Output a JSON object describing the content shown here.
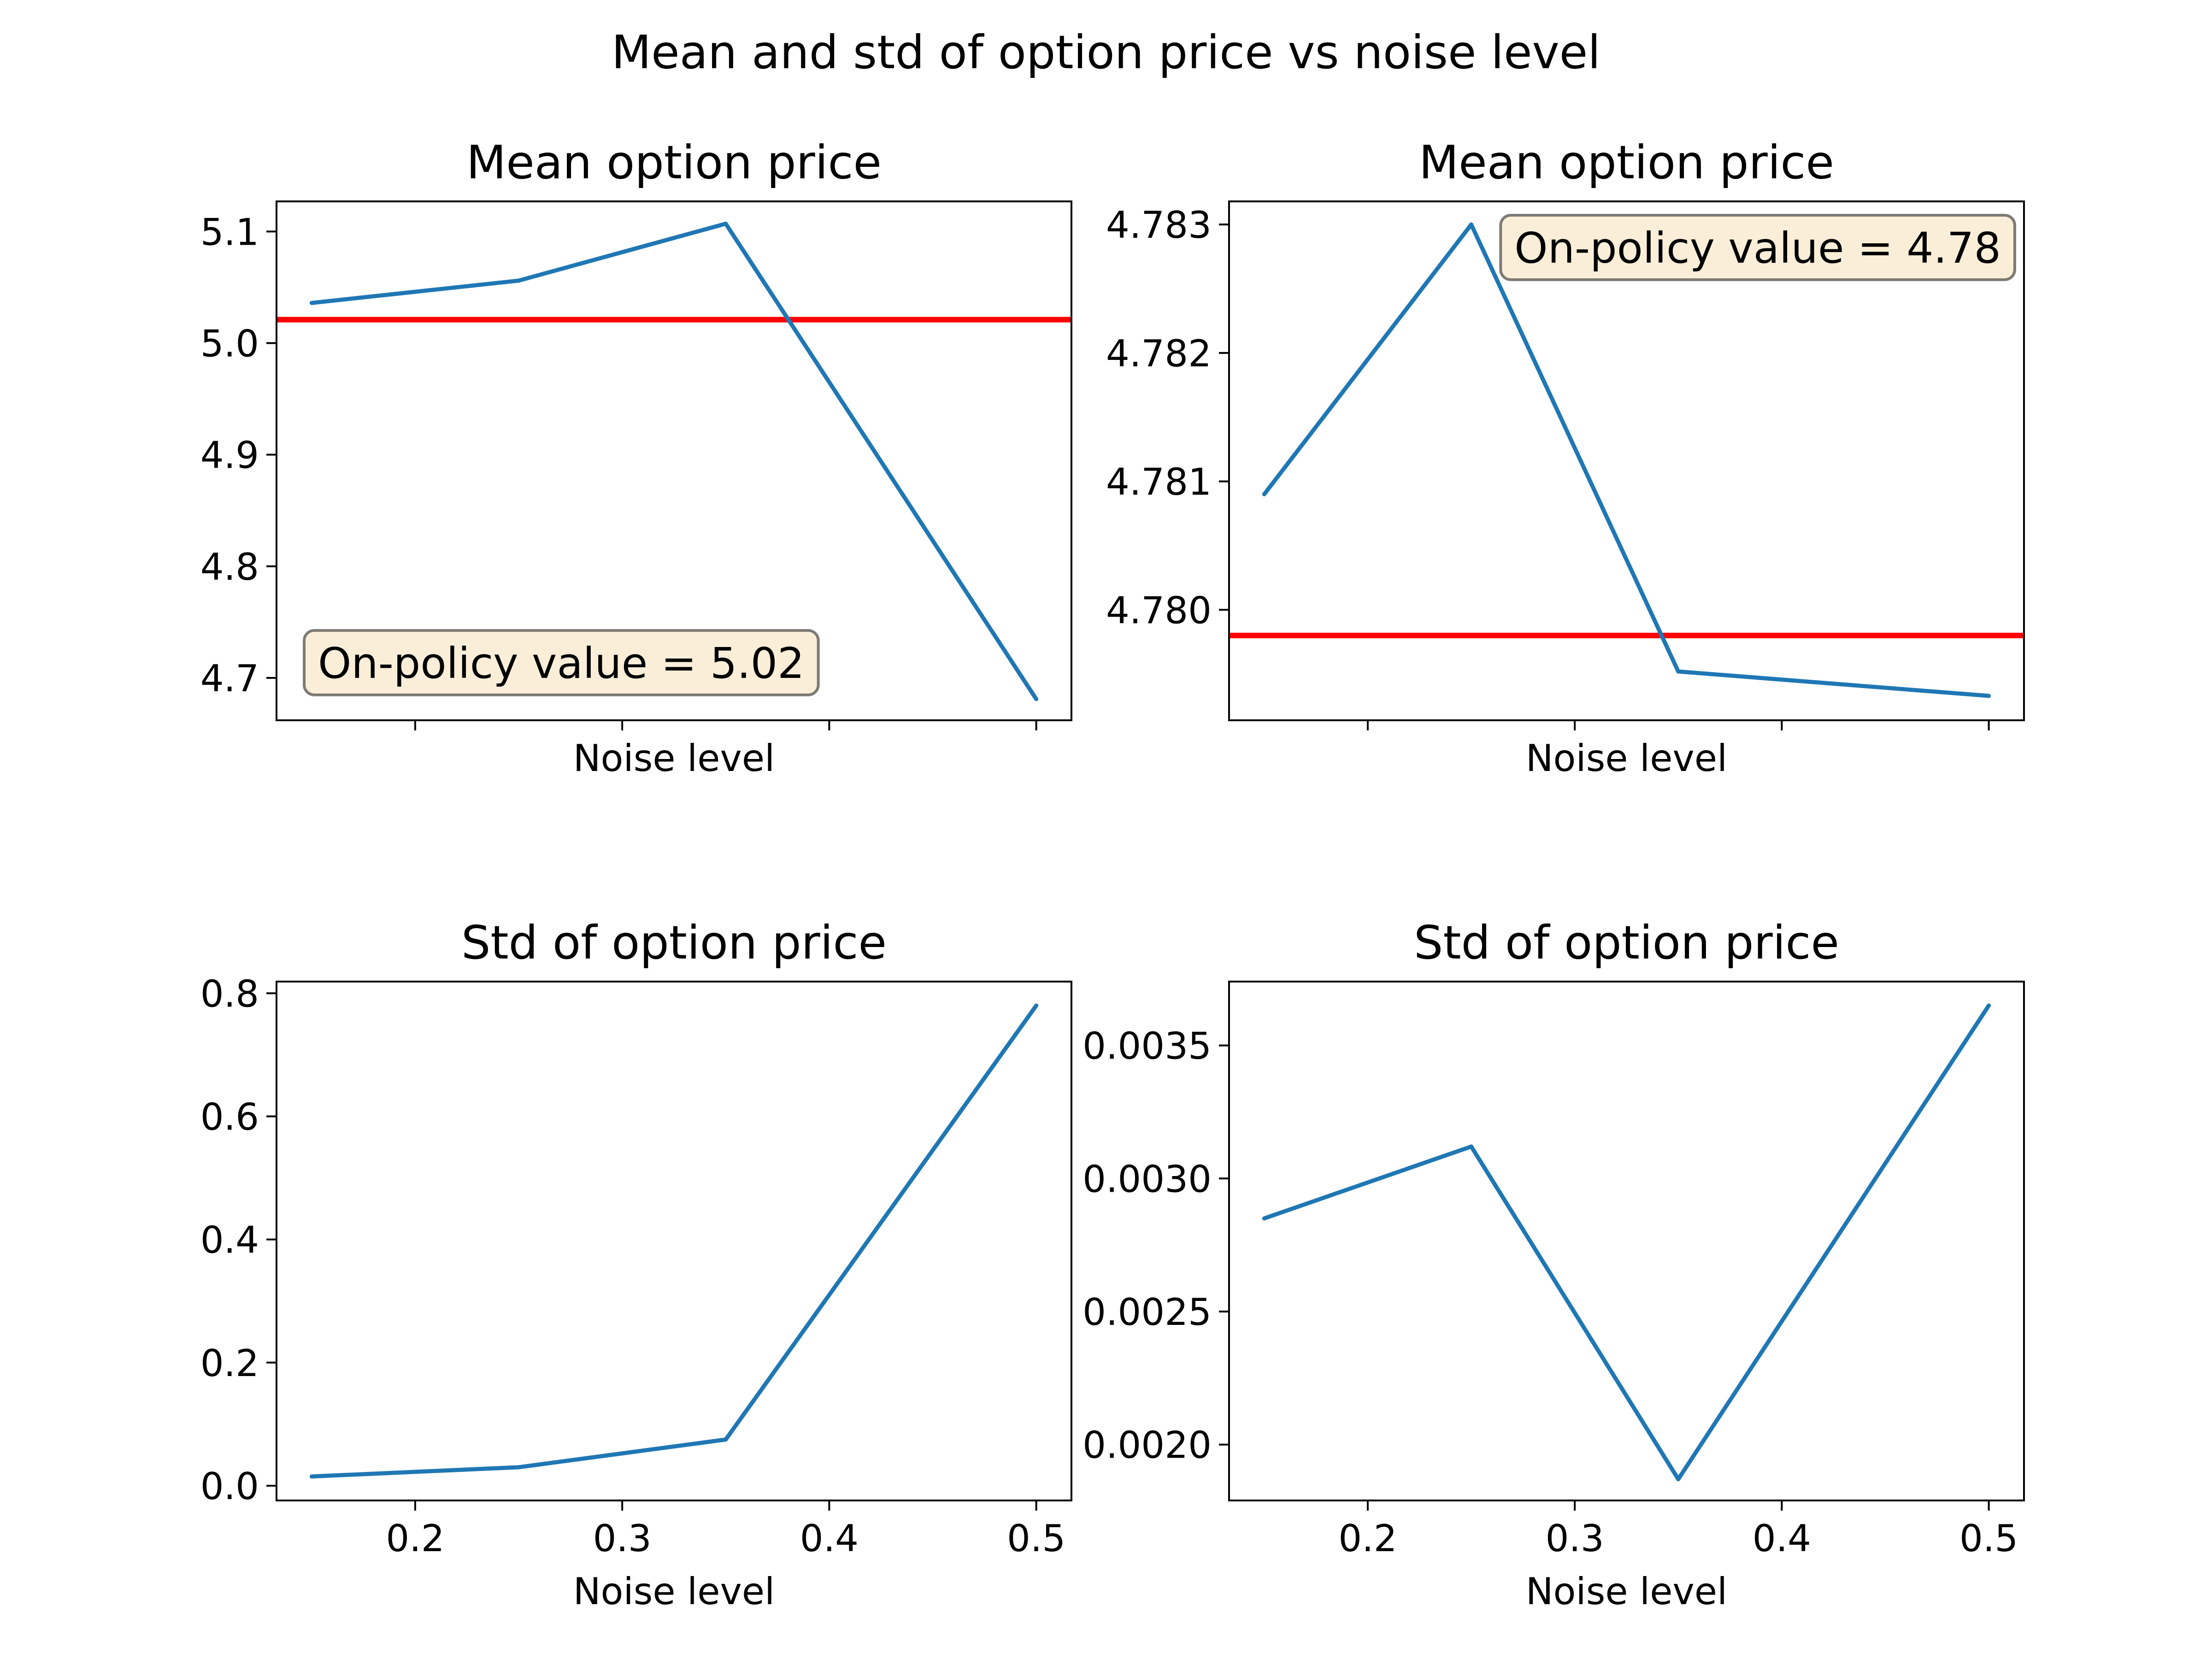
{
  "figure": {
    "suptitle": "Mean and std of option price vs noise level"
  },
  "colors": {
    "series": "#1f77b4",
    "reference": "#ff0000",
    "annotation_fill": "#f5deb3",
    "annotation_edge": "#000000"
  },
  "chart_data": [
    {
      "type": "line",
      "title": "Mean option price",
      "xlabel": "Noise level",
      "ylabel": "",
      "x": [
        0.15,
        0.25,
        0.35,
        0.5
      ],
      "values": [
        5.036,
        5.056,
        5.107,
        4.681
      ],
      "xlim": [
        0.133,
        0.517
      ],
      "ylim": [
        4.662,
        5.127
      ],
      "xticks": [
        0.2,
        0.3,
        0.4,
        0.5
      ],
      "xtick_labels_visible": false,
      "yticks": [
        4.7,
        4.8,
        4.9,
        5.0,
        5.1
      ],
      "ytick_labels": [
        "4.7",
        "4.8",
        "4.9",
        "5.0",
        "5.1"
      ],
      "reference_line": 5.021,
      "annotation": "On-policy value = 5.02",
      "annotation_position": "bottom-left",
      "grid": false,
      "legend": "none"
    },
    {
      "type": "line",
      "title": "Mean option price",
      "xlabel": "Noise level",
      "ylabel": "",
      "x": [
        0.15,
        0.25,
        0.35,
        0.5
      ],
      "values": [
        4.7809,
        4.783,
        4.77952,
        4.77933
      ],
      "xlim": [
        0.133,
        0.517
      ],
      "ylim": [
        4.77914,
        4.78318
      ],
      "xticks": [
        0.2,
        0.3,
        0.4,
        0.5
      ],
      "xtick_labels_visible": false,
      "yticks": [
        4.78,
        4.781,
        4.782,
        4.783
      ],
      "ytick_labels": [
        "4.780",
        "4.781",
        "4.782",
        "4.783"
      ],
      "reference_line": 4.7798,
      "annotation": "On-policy value = 4.78",
      "annotation_position": "top-right",
      "grid": false,
      "legend": "none"
    },
    {
      "type": "line",
      "title": "Std of option price",
      "xlabel": "Noise level",
      "ylabel": "",
      "x": [
        0.15,
        0.25,
        0.35,
        0.5
      ],
      "values": [
        0.015,
        0.03,
        0.075,
        0.78
      ],
      "xlim": [
        0.133,
        0.517
      ],
      "ylim": [
        -0.024,
        0.819
      ],
      "xticks": [
        0.2,
        0.3,
        0.4,
        0.5
      ],
      "xtick_labels_visible": true,
      "xtick_labels": [
        "0.2",
        "0.3",
        "0.4",
        "0.5"
      ],
      "yticks": [
        0.0,
        0.2,
        0.4,
        0.6,
        0.8
      ],
      "ytick_labels": [
        "0.0",
        "0.2",
        "0.4",
        "0.6",
        "0.8"
      ],
      "grid": false,
      "legend": "none"
    },
    {
      "type": "line",
      "title": "Std of option price",
      "xlabel": "Noise level",
      "ylabel": "",
      "x": [
        0.15,
        0.25,
        0.35,
        0.5
      ],
      "values": [
        0.00285,
        0.00312,
        0.00187,
        0.00365
      ],
      "xlim": [
        0.133,
        0.517
      ],
      "ylim": [
        0.00179,
        0.00374
      ],
      "xticks": [
        0.2,
        0.3,
        0.4,
        0.5
      ],
      "xtick_labels_visible": true,
      "xtick_labels": [
        "0.2",
        "0.3",
        "0.4",
        "0.5"
      ],
      "yticks": [
        0.002,
        0.0025,
        0.003,
        0.0035
      ],
      "ytick_labels": [
        "0.0020",
        "0.0025",
        "0.0030",
        "0.0035"
      ],
      "grid": false,
      "legend": "none"
    }
  ]
}
